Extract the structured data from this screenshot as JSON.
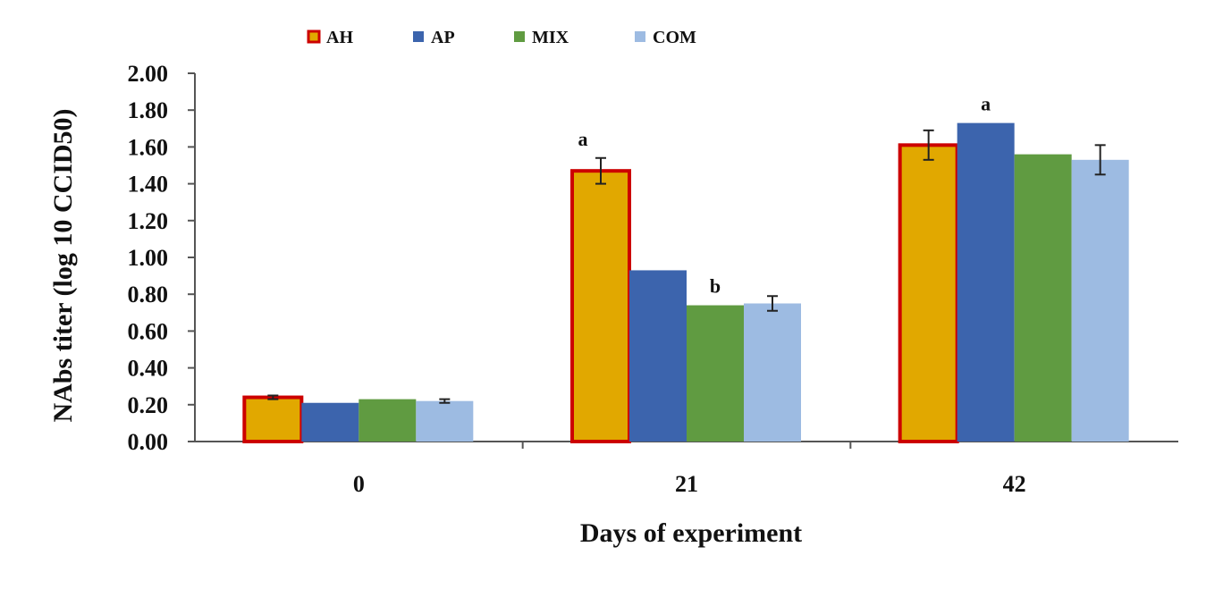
{
  "chart_data": {
    "type": "bar",
    "categories": [
      "0",
      "21",
      "42"
    ],
    "series": [
      {
        "name": "AH",
        "values": [
          0.24,
          1.47,
          1.61
        ],
        "errors": [
          0.01,
          0.07,
          0.08
        ],
        "color": "#E1A800",
        "outline": "#CC0000"
      },
      {
        "name": "AP",
        "values": [
          0.21,
          0.93,
          1.73
        ],
        "errors": [
          null,
          null,
          null
        ],
        "color": "#3C64AD",
        "outline": null
      },
      {
        "name": "MIX",
        "values": [
          0.23,
          0.74,
          1.56
        ],
        "errors": [
          null,
          null,
          null
        ],
        "color": "#609B41",
        "outline": null
      },
      {
        "name": "COM",
        "values": [
          0.22,
          0.75,
          1.53
        ],
        "errors": [
          0.01,
          0.04,
          0.08
        ],
        "color": "#9DBBE2",
        "outline": null
      }
    ],
    "annotations": [
      {
        "category": "21",
        "series": "AH",
        "text": "a"
      },
      {
        "category": "21",
        "series": "MIX",
        "text": "b"
      },
      {
        "category": "42",
        "series": "AP",
        "text": "a"
      }
    ],
    "xlabel": "Days of experiment",
    "ylabel": "NAbs titer (log 10 CCID50)",
    "ylim": [
      0,
      2.0
    ],
    "yticks": [
      "0.00",
      "0.20",
      "0.40",
      "0.60",
      "0.80",
      "1.00",
      "1.20",
      "1.40",
      "1.60",
      "1.80",
      "2.00"
    ],
    "grid": false,
    "legend_position": "top-left"
  }
}
